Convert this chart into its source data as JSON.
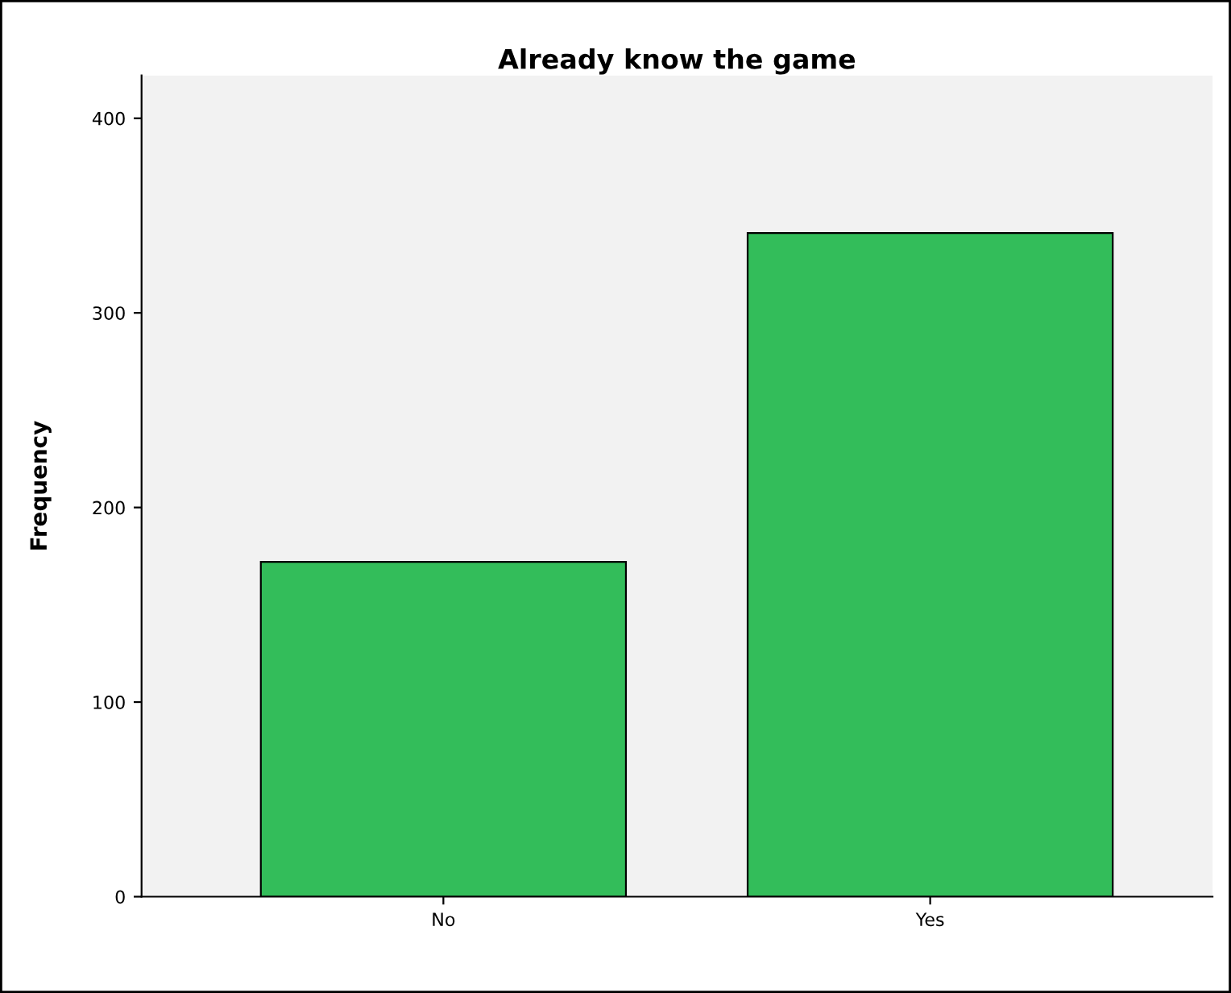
{
  "chart_data": {
    "type": "bar",
    "title": "Already know the game",
    "ylabel": "Frequency",
    "categories": [
      "No",
      "Yes"
    ],
    "values": [
      172,
      341
    ],
    "color": "#33bd5a",
    "ylim": [
      0,
      422
    ],
    "yticks": [
      0,
      100,
      200,
      300,
      400
    ],
    "grid": false
  }
}
